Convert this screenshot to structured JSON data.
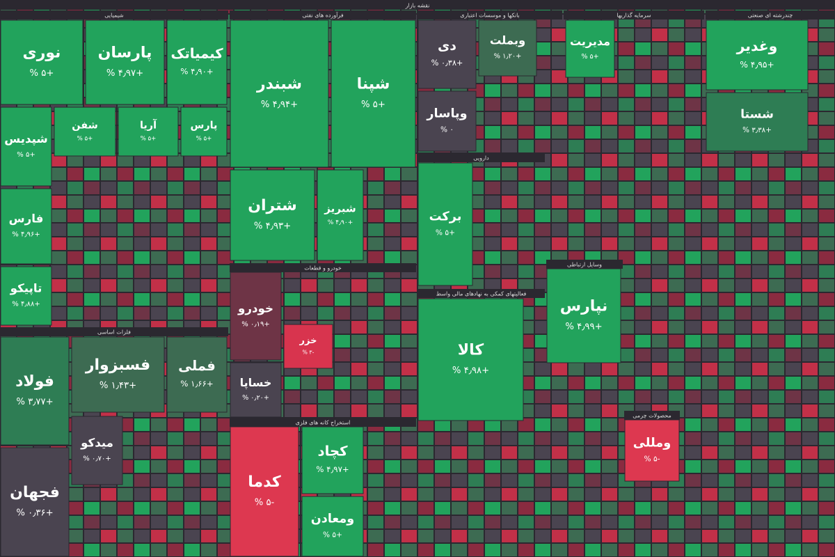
{
  "title": "نقشه بازار",
  "sectors": [
    {
      "name": "شیمیایی",
      "tiles": [
        {
          "name": "نوری",
          "change": "+۵ %",
          "color": "#22a35c"
        },
        {
          "name": "پارسان",
          "change": "+۴٫۹۷ %",
          "color": "#22a35c"
        },
        {
          "name": "کیمیاتک",
          "change": "+۴٫۹۰ %",
          "color": "#22a35c"
        },
        {
          "name": "شپدیس",
          "change": "+۵ %",
          "color": "#22a35c"
        },
        {
          "name": "شفن",
          "change": "+۵ %",
          "color": "#22a35c"
        },
        {
          "name": "آریا",
          "change": "+۵ %",
          "color": "#22a35c"
        },
        {
          "name": "پارس",
          "change": "+۵ %",
          "color": "#22a35c"
        },
        {
          "name": "فارس",
          "change": "+۴٫۹۶ %",
          "color": "#22a35c"
        },
        {
          "name": "تاپیکو",
          "change": "+۴٫۸۸ %",
          "color": "#22a35c"
        }
      ]
    },
    {
      "name": "فرآورده های نفتی",
      "tiles": [
        {
          "name": "شبندر",
          "change": "+۴٫۹۴ %",
          "color": "#22a35c"
        },
        {
          "name": "شپنا",
          "change": "+۵ %",
          "color": "#22a35c"
        },
        {
          "name": "شتران",
          "change": "+۴٫۹۳ %",
          "color": "#22a35c"
        },
        {
          "name": "شبریز",
          "change": "+۴٫۹۰ %",
          "color": "#22a35c"
        }
      ]
    },
    {
      "name": "بانکها و موسسات اعتباری",
      "tiles": [
        {
          "name": "دی",
          "change": "+۰٫۳۸ %",
          "color": "#4a4450"
        },
        {
          "name": "وبملت",
          "change": "+۱٫۲۰ %",
          "color": "#3d6b52"
        },
        {
          "name": "وپاسار",
          "change": "۰ %",
          "color": "#4a4450"
        }
      ]
    },
    {
      "name": "سرمایه گذاریها",
      "tiles": [
        {
          "name": "مدیریت",
          "change": "+۵ %",
          "color": "#22a35c"
        }
      ]
    },
    {
      "name": "چندرشته ای صنعتی",
      "tiles": [
        {
          "name": "وغدیر",
          "change": "+۴٫۹۵ %",
          "color": "#22a35c"
        },
        {
          "name": "شستا",
          "change": "+۳٫۳۸ %",
          "color": "#2e7d54"
        }
      ]
    },
    {
      "name": "فلزات اساسی",
      "tiles": [
        {
          "name": "فولاد",
          "change": "+۳٫۷۷ %",
          "color": "#2e7d54"
        },
        {
          "name": "فسبزوار",
          "change": "+۱٫۴۳ %",
          "color": "#3d6b52"
        },
        {
          "name": "فملی",
          "change": "+۱٫۶۶ %",
          "color": "#3d6b52"
        },
        {
          "name": "فجهان",
          "change": "+۰٫۳۶ %",
          "color": "#4a4450"
        },
        {
          "name": "میدکو",
          "change": "+۰٫۷۰ %",
          "color": "#4a4450"
        }
      ]
    },
    {
      "name": "خودرو و قطعات",
      "tiles": [
        {
          "name": "خودرو",
          "change": "+۰٫۱۹ %",
          "color": "#6e3446"
        },
        {
          "name": "خساپا",
          "change": "+۰٫۲۰ %",
          "color": "#4a4450"
        },
        {
          "name": "خزر",
          "change": "-۳ %",
          "color": "#d8344e"
        }
      ]
    },
    {
      "name": "استخراج کانه های فلزی",
      "tiles": [
        {
          "name": "کدما",
          "change": "-۵ %",
          "color": "#dd3850"
        },
        {
          "name": "کچاد",
          "change": "+۴٫۹۷ %",
          "color": "#22a35c"
        },
        {
          "name": "ومعادن",
          "change": "+۵ %",
          "color": "#22a35c"
        }
      ]
    },
    {
      "name": "دارویی",
      "tiles": [
        {
          "name": "برکت",
          "change": "+۵ %",
          "color": "#22a35c"
        }
      ]
    },
    {
      "name": "فعالیتهای کمکی به نهادهای مالی واسط",
      "tiles": [
        {
          "name": "کالا",
          "change": "+۴٫۹۸ %",
          "color": "#22a35c"
        }
      ]
    },
    {
      "name": "وسایل ارتباطی",
      "tiles": [
        {
          "name": "نپارس",
          "change": "+۴٫۹۹ %",
          "color": "#22a35c"
        }
      ]
    },
    {
      "name": "محصولات چرمی",
      "tiles": [
        {
          "name": "ومللی",
          "change": "-۵ %",
          "color": "#dd3850"
        }
      ]
    }
  ]
}
